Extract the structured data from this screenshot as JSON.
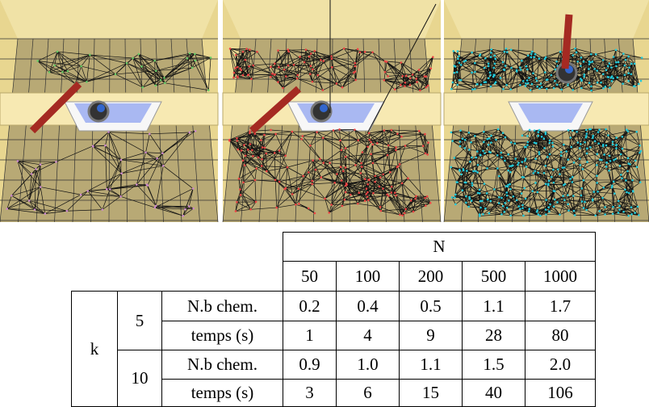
{
  "table": {
    "header": "N",
    "columns": [
      "50",
      "100",
      "200",
      "500",
      "1000"
    ],
    "group_label": "k",
    "groups": [
      {
        "k": "5",
        "rows": [
          {
            "label": "N.b chem.",
            "values": [
              "0.2",
              "0.4",
              "0.5",
              "1.1",
              "1.7"
            ]
          },
          {
            "label": "temps (s)",
            "values": [
              "1",
              "4",
              "9",
              "28",
              "80"
            ]
          }
        ]
      },
      {
        "k": "10",
        "rows": [
          {
            "label": "N.b chem.",
            "values": [
              "0.9",
              "1.0",
              "1.1",
              "1.5",
              "2.0"
            ]
          },
          {
            "label": "temps (s)",
            "values": [
              "3",
              "6",
              "15",
              "40",
              "106"
            ]
          }
        ]
      }
    ]
  }
}
